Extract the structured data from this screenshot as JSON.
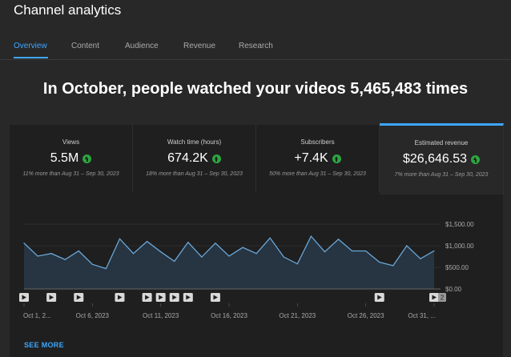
{
  "app": {
    "title": "Channel analytics"
  },
  "tabs": [
    {
      "label": "Overview"
    },
    {
      "label": "Content"
    },
    {
      "label": "Audience"
    },
    {
      "label": "Revenue"
    },
    {
      "label": "Research"
    }
  ],
  "headline": "In October, people watched your videos 5,465,483 times",
  "cards": [
    {
      "label": "Views",
      "value": "5.5M",
      "sub": "11% more than Aug 31 – Sep 30, 2023"
    },
    {
      "label": "Watch time (hours)",
      "value": "674.2K",
      "sub": "18% more than Aug 31 – Sep 30, 2023"
    },
    {
      "label": "Subscribers",
      "value": "+7.4K",
      "sub": "50% more than Aug 31 – Sep 30, 2023"
    },
    {
      "label": "Estimated revenue",
      "value": "$26,646.53",
      "sub": "7% more than Aug 31 – Sep 30, 2023"
    }
  ],
  "see_more": "SEE MORE",
  "colors": {
    "accent": "#3ea6ff",
    "positive": "#2ba640",
    "line": "#6aa7d9",
    "fill": "#263541"
  },
  "chart_data": {
    "type": "area",
    "y_ticks": [
      "$1,500.00",
      "$1,000.00",
      "$500.00",
      "$0.00"
    ],
    "ylim": [
      0,
      1500
    ],
    "x_tick_labels": [
      "Oct 1, 2...",
      "Oct 6, 2023",
      "Oct 11, 2023",
      "Oct 16, 2023",
      "Oct 21, 2023",
      "Oct 26, 2023",
      "Oct 31, ..."
    ],
    "x": [
      1,
      2,
      3,
      4,
      5,
      6,
      7,
      8,
      9,
      10,
      11,
      12,
      13,
      14,
      15,
      16,
      17,
      18,
      19,
      20,
      21,
      22,
      23,
      24,
      25,
      26,
      27,
      28,
      29,
      30,
      31
    ],
    "values": [
      1060,
      760,
      820,
      680,
      880,
      570,
      470,
      1160,
      820,
      1100,
      860,
      640,
      1080,
      740,
      1060,
      760,
      960,
      820,
      1180,
      740,
      580,
      1220,
      860,
      1150,
      880,
      880,
      620,
      540,
      1000,
      700,
      880
    ],
    "video_marker_days": [
      1,
      3,
      5,
      8,
      10,
      11,
      12,
      13,
      15,
      27,
      31
    ],
    "marker_count_badge": "2"
  }
}
